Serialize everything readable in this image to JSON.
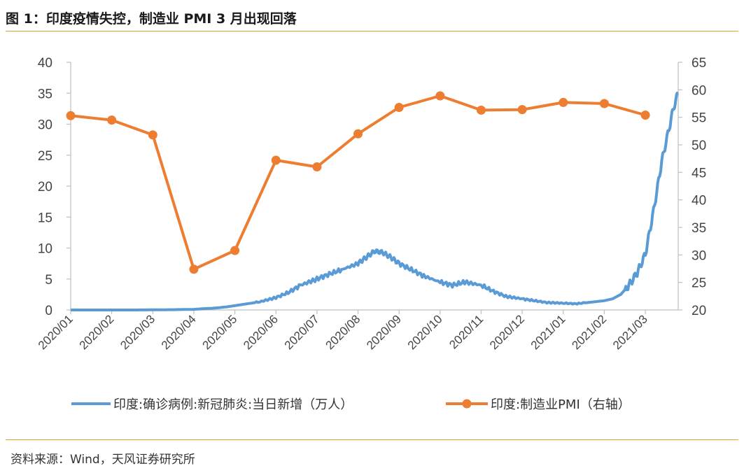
{
  "title": "图 1：印度疫情失控，制造业 PMI  3 月出现回落",
  "source": "资料来源：Wind，天风证券研究所",
  "colors": {
    "cases": "#5b9bd5",
    "pmi": "#ed7d31",
    "axis": "#bfbfbf"
  },
  "chart_data": {
    "type": "line",
    "title": "图 1：印度疫情失控，制造业 PMI  3 月出现回落",
    "categories": [
      "2020/01",
      "2020/02",
      "2020/03",
      "2020/04",
      "2020/05",
      "2020/06",
      "2020/07",
      "2020/08",
      "2020/09",
      "2020/10",
      "2020/11",
      "2020/12",
      "2021/01",
      "2021/02",
      "2021/03"
    ],
    "y_left": {
      "min": 0,
      "max": 40,
      "step": 5,
      "ticks": [
        "0",
        "5",
        "10",
        "15",
        "20",
        "25",
        "30",
        "35",
        "40"
      ]
    },
    "y_right": {
      "min": 20,
      "max": 65,
      "step": 5,
      "ticks": [
        "20",
        "25",
        "30",
        "35",
        "40",
        "45",
        "50",
        "55",
        "60",
        "65"
      ]
    },
    "series": [
      {
        "name": "印度:确诊病例:新冠肺炎:当日新增（万人）",
        "axis": "left",
        "x": [
          0,
          0.5,
          1,
          1.5,
          2,
          2.5,
          3,
          3.2,
          3.5,
          3.8,
          4,
          4.3,
          4.6,
          5,
          5.3,
          5.6,
          6,
          6.3,
          6.6,
          7,
          7.2,
          7.4,
          7.6,
          7.8,
          8,
          8.3,
          8.6,
          9,
          9.3,
          9.6,
          10,
          10.3,
          10.6,
          11,
          11.3,
          11.6,
          12,
          12.3,
          12.6,
          13,
          13.2,
          13.4,
          13.6,
          13.8,
          14,
          14.2,
          14.4,
          14.6,
          14.7,
          14.8
        ],
        "values": [
          0,
          0,
          0,
          0,
          0.02,
          0.05,
          0.1,
          0.2,
          0.3,
          0.5,
          0.7,
          1.0,
          1.3,
          2.0,
          2.8,
          4.0,
          5.0,
          5.8,
          6.5,
          7.5,
          8.5,
          9.5,
          9.3,
          8.5,
          7.5,
          6.5,
          5.5,
          4.5,
          4.0,
          4.5,
          4.0,
          3.0,
          2.2,
          1.8,
          1.5,
          1.2,
          1.1,
          1.0,
          1.2,
          1.5,
          1.8,
          2.5,
          4.0,
          6.0,
          9.0,
          16.0,
          24.0,
          30.0,
          33.0,
          35.0
        ]
      },
      {
        "name": "印度:制造业PMI（右轴）",
        "axis": "right",
        "x": [
          0,
          1,
          2,
          3,
          4,
          5,
          6,
          7,
          8,
          9,
          10,
          11,
          12,
          13,
          14
        ],
        "values": [
          55.3,
          54.5,
          51.8,
          27.4,
          30.8,
          47.2,
          46.0,
          52.0,
          56.8,
          58.9,
          56.3,
          56.4,
          57.7,
          57.5,
          55.4
        ]
      }
    ]
  }
}
